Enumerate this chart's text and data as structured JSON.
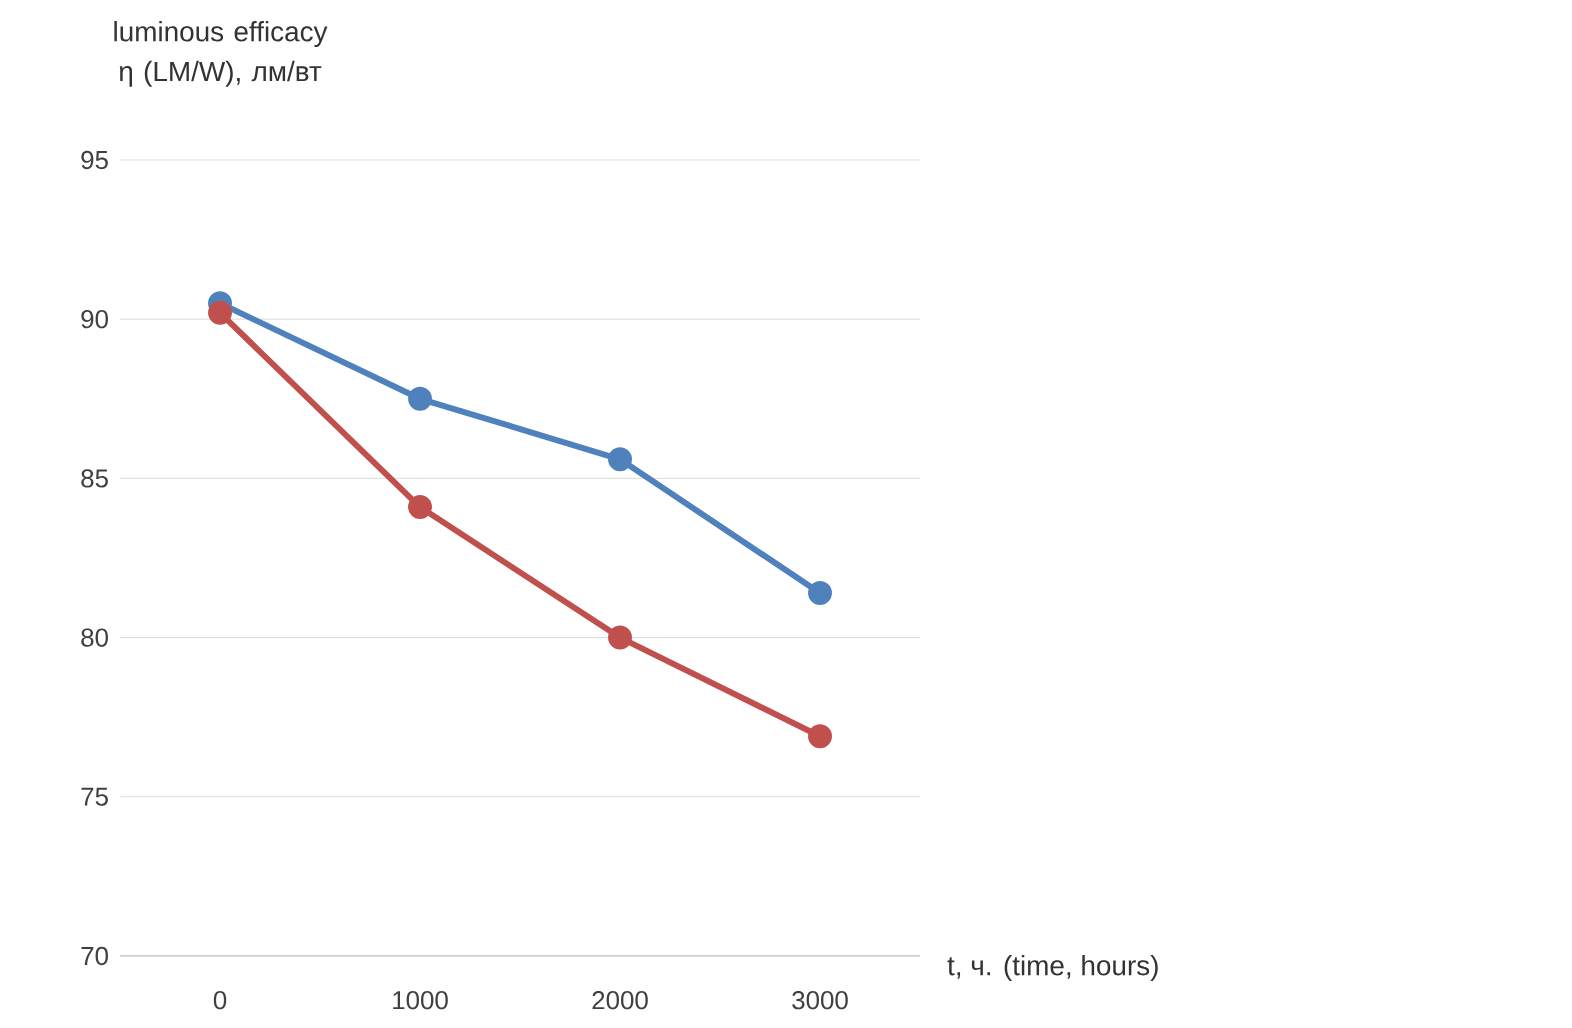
{
  "chart_data": {
    "type": "line",
    "ylabel": "luminous efficacy η (LM/W), лм/вт",
    "xlabel": "t, ч. (time, hours)",
    "categories": [
      "0",
      "1000",
      "2000",
      "3000"
    ],
    "series": [
      {
        "color": "#4f81bd",
        "values": [
          90.5,
          87.5,
          85.6,
          81.4
        ]
      },
      {
        "color": "#c0504d",
        "values": [
          90.2,
          84.1,
          80.0,
          76.9
        ]
      }
    ],
    "ylim": [
      70,
      95
    ],
    "yticks": [
      70,
      75,
      80,
      85,
      90,
      95
    ],
    "grid": "y",
    "marker": "circle",
    "line_style": "solid"
  }
}
